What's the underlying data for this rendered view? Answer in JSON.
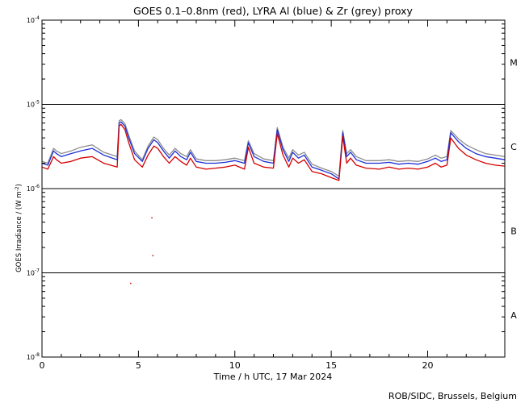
{
  "chart_data": {
    "type": "line",
    "title": "GOES 0.1–0.8nm (red), LYRA Al (blue) & Zr (grey) proxy",
    "xlabel": "Time / h UTC, 17 Mar 2024",
    "ylabel_main": "GOES Irradiance / (W m",
    "ylabel_sup": "-2",
    "ylabel_end": ")",
    "credit": "ROB/SIDC, Brussels, Belgium",
    "xlim": [
      0,
      24
    ],
    "ylim": [
      1e-08,
      0.0001
    ],
    "yscale": "log",
    "x_ticks": [
      0,
      5,
      10,
      15,
      20
    ],
    "x_tick_labels": [
      "0",
      "5",
      "10",
      "15",
      "20"
    ],
    "y_ticks": [
      {
        "value": 1e-08,
        "base": "10",
        "exp": "-8"
      },
      {
        "value": 1e-07,
        "base": "10",
        "exp": "-7"
      },
      {
        "value": 1e-06,
        "base": "10",
        "exp": "-6"
      },
      {
        "value": 1e-05,
        "base": "10",
        "exp": "-5"
      },
      {
        "value": 0.0001,
        "base": "10",
        "exp": "-4"
      }
    ],
    "flare_class_lines": [
      1e-07,
      1e-06,
      1e-05
    ],
    "flare_classes": [
      {
        "label": "A",
        "center": 3.16e-08
      },
      {
        "label": "B",
        "center": 3.16e-07
      },
      {
        "label": "C",
        "center": 3.16e-06
      },
      {
        "label": "M",
        "center": 3.16e-05
      }
    ],
    "series": [
      {
        "color": "#d40000",
        "x": [
          0,
          0.3,
          0.6,
          0.75,
          1.0,
          1.5,
          2.0,
          2.6,
          3.2,
          3.9,
          4.0,
          4.1,
          4.3,
          4.5,
          4.8,
          5.2,
          5.5,
          5.8,
          6.0,
          6.3,
          6.6,
          6.9,
          7.2,
          7.5,
          7.7,
          8.0,
          8.5,
          9.0,
          9.5,
          10.0,
          10.5,
          10.7,
          11.0,
          11.5,
          12.0,
          12.2,
          12.5,
          12.8,
          13.0,
          13.3,
          13.6,
          14.0,
          14.5,
          15.0,
          15.4,
          15.6,
          15.8,
          16.0,
          16.3,
          16.8,
          17.5,
          18.0,
          18.5,
          19.0,
          19.5,
          20.0,
          20.4,
          20.7,
          21.0,
          21.2,
          21.6,
          22.0,
          22.5,
          23.0,
          23.5,
          24.0
        ],
        "y": [
          1.8e-06,
          1.7e-06,
          2.4e-06,
          2.2e-06,
          2e-06,
          2.1e-06,
          2.3e-06,
          2.4e-06,
          2e-06,
          1.8e-06,
          5.5e-06,
          5.8e-06,
          5e-06,
          3.5e-06,
          2.2e-06,
          1.8e-06,
          2.5e-06,
          3.2e-06,
          3e-06,
          2.4e-06,
          2e-06,
          2.4e-06,
          2.1e-06,
          1.9e-06,
          2.3e-06,
          1.8e-06,
          1.7e-06,
          1.75e-06,
          1.8e-06,
          1.9e-06,
          1.7e-06,
          3.1e-06,
          2e-06,
          1.8e-06,
          1.75e-06,
          4.5e-06,
          2.5e-06,
          1.8e-06,
          2.3e-06,
          2e-06,
          2.2e-06,
          1.6e-06,
          1.5e-06,
          1.35e-06,
          1.25e-06,
          4.2e-06,
          2e-06,
          2.3e-06,
          1.9e-06,
          1.75e-06,
          1.7e-06,
          1.8e-06,
          1.7e-06,
          1.75e-06,
          1.7e-06,
          1.8e-06,
          2e-06,
          1.8e-06,
          1.9e-06,
          4e-06,
          3e-06,
          2.5e-06,
          2.2e-06,
          2e-06,
          1.9e-06,
          1.85e-06
        ]
      },
      {
        "color": "#1c2fd8",
        "x": [
          0,
          0.3,
          0.6,
          0.75,
          1.0,
          1.5,
          2.0,
          2.6,
          3.2,
          3.9,
          4.0,
          4.1,
          4.3,
          4.5,
          4.8,
          5.2,
          5.5,
          5.8,
          6.0,
          6.3,
          6.6,
          6.9,
          7.2,
          7.5,
          7.7,
          8.0,
          8.5,
          9.0,
          9.5,
          10.0,
          10.5,
          10.7,
          11.0,
          11.5,
          12.0,
          12.2,
          12.5,
          12.8,
          13.0,
          13.3,
          13.6,
          14.0,
          14.5,
          15.0,
          15.4,
          15.6,
          15.8,
          16.0,
          16.3,
          16.8,
          17.5,
          18.0,
          18.5,
          19.0,
          19.5,
          20.0,
          20.4,
          20.7,
          21.0,
          21.2,
          21.6,
          22.0,
          22.5,
          23.0,
          23.5,
          24.0
        ],
        "y": [
          2e-06,
          1.9e-06,
          2.8e-06,
          2.6e-06,
          2.4e-06,
          2.6e-06,
          2.8e-06,
          3e-06,
          2.5e-06,
          2.2e-06,
          6e-06,
          6.2e-06,
          5.5e-06,
          4e-06,
          2.6e-06,
          2.1e-06,
          3e-06,
          3.8e-06,
          3.5e-06,
          2.8e-06,
          2.3e-06,
          2.8e-06,
          2.4e-06,
          2.2e-06,
          2.7e-06,
          2.1e-06,
          2e-06,
          2e-06,
          2.05e-06,
          2.15e-06,
          2e-06,
          3.5e-06,
          2.4e-06,
          2.1e-06,
          2e-06,
          5e-06,
          2.9e-06,
          2.1e-06,
          2.7e-06,
          2.3e-06,
          2.5e-06,
          1.8e-06,
          1.65e-06,
          1.5e-06,
          1.3e-06,
          4.6e-06,
          2.4e-06,
          2.7e-06,
          2.2e-06,
          2e-06,
          2e-06,
          2.05e-06,
          1.95e-06,
          2e-06,
          1.95e-06,
          2.1e-06,
          2.3e-06,
          2.1e-06,
          2.2e-06,
          4.6e-06,
          3.6e-06,
          3e-06,
          2.6e-06,
          2.4e-06,
          2.3e-06,
          2.2e-06
        ]
      },
      {
        "color": "#8c8c8c",
        "x": [
          0,
          0.3,
          0.6,
          0.75,
          1.0,
          1.5,
          2.0,
          2.6,
          3.2,
          3.9,
          4.0,
          4.1,
          4.3,
          4.5,
          4.8,
          5.2,
          5.5,
          5.8,
          6.0,
          6.3,
          6.6,
          6.9,
          7.2,
          7.5,
          7.7,
          8.0,
          8.5,
          9.0,
          9.5,
          10.0,
          10.5,
          10.7,
          11.0,
          11.5,
          12.0,
          12.2,
          12.5,
          12.8,
          13.0,
          13.3,
          13.6,
          14.0,
          14.5,
          15.0,
          15.4,
          15.6,
          15.8,
          16.0,
          16.3,
          16.8,
          17.5,
          18.0,
          18.5,
          19.0,
          19.5,
          20.0,
          20.4,
          20.7,
          21.0,
          21.2,
          21.6,
          22.0,
          22.5,
          23.0,
          23.5,
          24.0
        ],
        "y": [
          2.1e-06,
          2e-06,
          3e-06,
          2.8e-06,
          2.6e-06,
          2.8e-06,
          3.1e-06,
          3.3e-06,
          2.7e-06,
          2.4e-06,
          6.4e-06,
          6.6e-06,
          5.9e-06,
          4.3e-06,
          2.8e-06,
          2.2e-06,
          3.2e-06,
          4.1e-06,
          3.8e-06,
          3e-06,
          2.5e-06,
          3e-06,
          2.6e-06,
          2.4e-06,
          2.9e-06,
          2.25e-06,
          2.15e-06,
          2.15e-06,
          2.2e-06,
          2.3e-06,
          2.15e-06,
          3.7e-06,
          2.6e-06,
          2.25e-06,
          2.15e-06,
          5.3e-06,
          3.1e-06,
          2.3e-06,
          2.9e-06,
          2.5e-06,
          2.7e-06,
          1.95e-06,
          1.75e-06,
          1.6e-06,
          1.4e-06,
          4.9e-06,
          2.6e-06,
          2.9e-06,
          2.4e-06,
          2.15e-06,
          2.15e-06,
          2.2e-06,
          2.1e-06,
          2.15e-06,
          2.1e-06,
          2.25e-06,
          2.5e-06,
          2.3e-06,
          2.4e-06,
          4.9e-06,
          3.9e-06,
          3.3e-06,
          2.9e-06,
          2.6e-06,
          2.5e-06,
          2.4e-06
        ]
      }
    ],
    "red_outliers": [
      {
        "x": 5.7,
        "y": 4.5e-07
      },
      {
        "x": 5.75,
        "y": 1.6e-07
      },
      {
        "x": 4.6,
        "y": 7.5e-08
      }
    ]
  }
}
